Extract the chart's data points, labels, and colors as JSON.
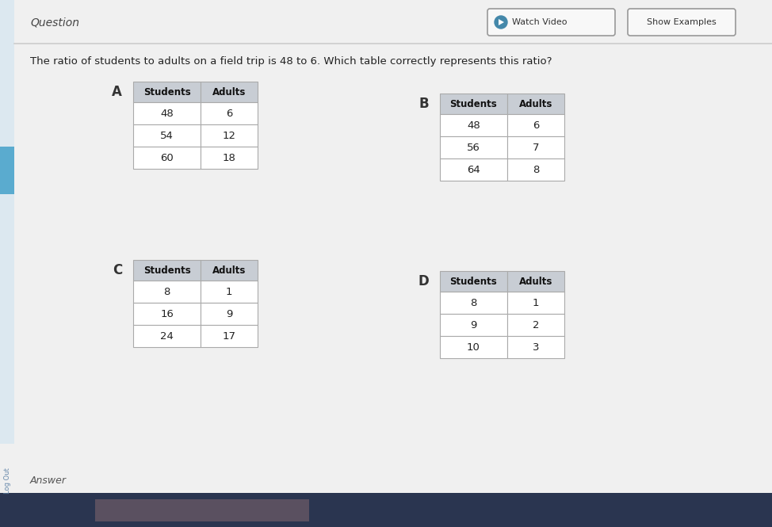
{
  "title": "Question",
  "question": "The ratio of students to adults on a field trip is 48 to 6. Which table correctly represents this ratio?",
  "btn1": "Watch Video",
  "btn2": "Show Examples",
  "answer_label": "Answer",
  "logout_label": "Log Out",
  "bg_main": "#f0f0f0",
  "bg_left_bar": "#dce8f0",
  "bg_blue_highlight": "#5aabcf",
  "bg_bottom": "#2a3550",
  "bg_bottom_box": "#5a5060",
  "table_bg": "#ffffff",
  "header_bg": "#c8cdd4",
  "border_color": "#aaaaaa",
  "tables": [
    {
      "label": "A",
      "headers": [
        "Students",
        "Adults"
      ],
      "rows": [
        [
          "48",
          "6"
        ],
        [
          "54",
          "12"
        ],
        [
          "60",
          "18"
        ]
      ]
    },
    {
      "label": "B",
      "headers": [
        "Students",
        "Adults"
      ],
      "rows": [
        [
          "48",
          "6"
        ],
        [
          "56",
          "7"
        ],
        [
          "64",
          "8"
        ]
      ]
    },
    {
      "label": "C",
      "headers": [
        "Students",
        "Adults"
      ],
      "rows": [
        [
          "8",
          "1"
        ],
        [
          "16",
          "9"
        ],
        [
          "24",
          "17"
        ]
      ]
    },
    {
      "label": "D",
      "headers": [
        "Students",
        "Adults"
      ],
      "rows": [
        [
          "8",
          "1"
        ],
        [
          "9",
          "2"
        ],
        [
          "10",
          "3"
        ]
      ]
    }
  ]
}
